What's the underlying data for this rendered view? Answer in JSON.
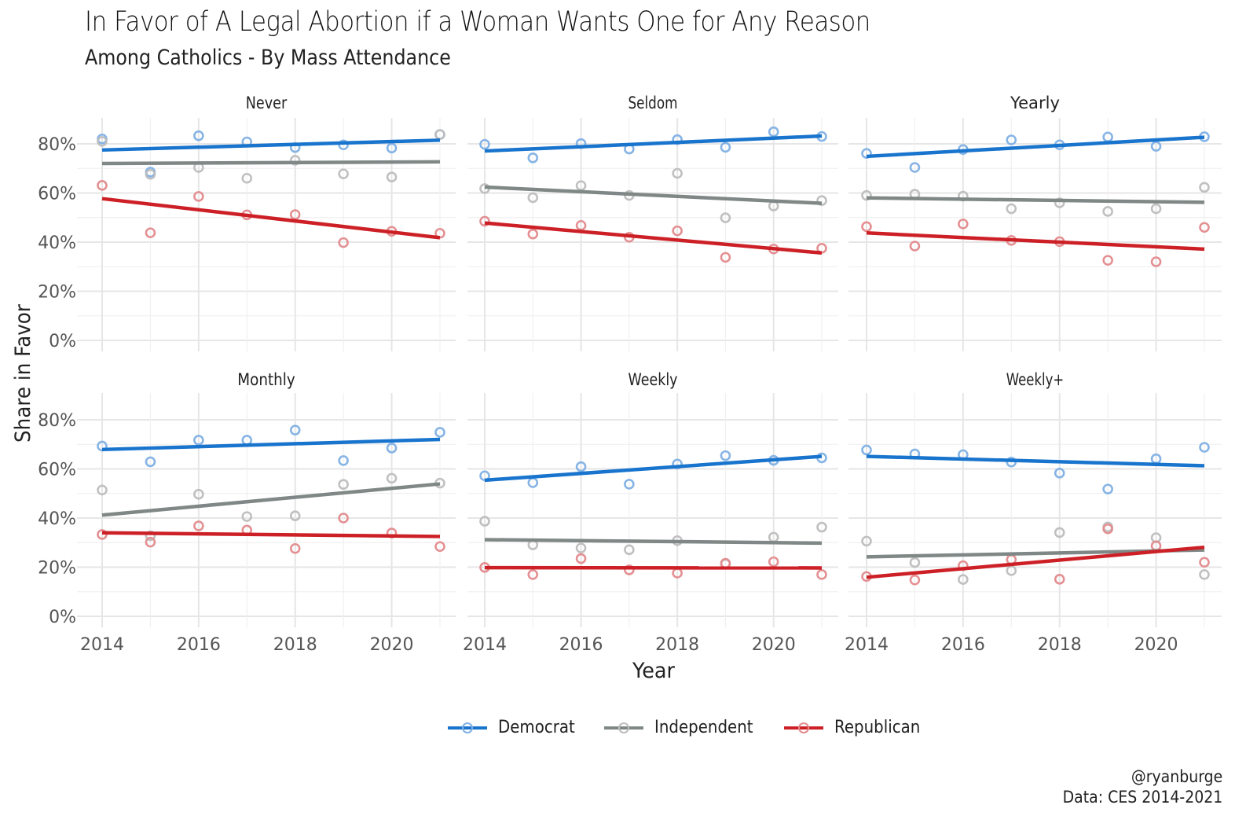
{
  "chart_data": {
    "type": "scatter",
    "title": "In Favor of A Legal Abortion if a Woman Wants One for Any Reason",
    "subtitle": "Among Catholics - By Mass Attendance",
    "xlabel": "Year",
    "ylabel": "Share in Favor",
    "x": [
      2014,
      2015,
      2016,
      2017,
      2018,
      2019,
      2020,
      2021
    ],
    "xticks": [
      "2014",
      "2016",
      "2018",
      "2020"
    ],
    "xlim": [
      2014,
      2021
    ],
    "yticks": [
      "0%",
      "20%",
      "40%",
      "60%",
      "80%"
    ],
    "ylim": [
      0,
      88
    ],
    "grid": true,
    "overlay": "linear trend line per series",
    "legend_position": "bottom",
    "legend": [
      {
        "name": "Democrat",
        "color": "#1874cd"
      },
      {
        "name": "Independent",
        "color": "#7f8886"
      },
      {
        "name": "Republican",
        "color": "#cd2026"
      }
    ],
    "facets": [
      {
        "name": "Never",
        "series": [
          {
            "name": "Democrat",
            "values": [
              82,
              68.5,
              83.3,
              80.8,
              78.5,
              79.6,
              78.3,
              83.8
            ],
            "trend": [
              77.5,
              81.5
            ]
          },
          {
            "name": "Independent",
            "values": [
              81,
              67.6,
              70.4,
              66,
              73.3,
              67.8,
              66.5,
              83.8
            ],
            "trend": [
              72,
              72.7
            ]
          },
          {
            "name": "Republican",
            "values": [
              63.1,
              43.8,
              58.6,
              51.1,
              51.2,
              39.8,
              44.4,
              43.6
            ],
            "trend": [
              57.7,
              41.8
            ]
          }
        ]
      },
      {
        "name": "Seldom",
        "series": [
          {
            "name": "Democrat",
            "values": [
              79.8,
              74.3,
              80.1,
              77.9,
              81.7,
              78.6,
              84.9,
              83
            ],
            "trend": [
              77.1,
              83.2
            ]
          },
          {
            "name": "Independent",
            "values": [
              61.8,
              58.1,
              63,
              59,
              68,
              49.9,
              54.7,
              56.9
            ],
            "trend": [
              62.4,
              55.8
            ]
          },
          {
            "name": "Republican",
            "values": [
              48.5,
              43.3,
              46.8,
              42,
              44.6,
              33.8,
              37.2,
              37.5
            ],
            "trend": [
              47.8,
              35.6
            ]
          }
        ]
      },
      {
        "name": "Yearly",
        "series": [
          {
            "name": "Democrat",
            "values": [
              76.1,
              70.4,
              77.7,
              81.6,
              79.6,
              82.8,
              79,
              82.9
            ],
            "trend": [
              74.9,
              82.7
            ]
          },
          {
            "name": "Independent",
            "values": [
              59,
              59.5,
              58.7,
              53.6,
              56,
              52.5,
              53.6,
              62.3
            ],
            "trend": [
              58,
              56.2
            ]
          },
          {
            "name": "Republican",
            "values": [
              46.3,
              38.4,
              47.4,
              40.7,
              40.2,
              32.6,
              32,
              46
            ]
          }
        ]
      },
      {
        "name": "Monthly",
        "series": [
          {
            "name": "Democrat",
            "values": [
              69.3,
              62.9,
              71.7,
              71.7,
              75.8,
              63.4,
              68.5,
              74.9
            ],
            "trend": [
              67.9,
              72
            ]
          },
          {
            "name": "Independent",
            "values": [
              51.4,
              32.8,
              49.7,
              40.6,
              40.9,
              53.7,
              56.2,
              54.2
            ],
            "trend": [
              41.2,
              53.9
            ]
          },
          {
            "name": "Republican",
            "values": [
              33.3,
              30.2,
              36.8,
              35.1,
              27.6,
              40,
              33.9,
              28.4
            ],
            "trend": [
              34,
              32.5
            ]
          }
        ]
      },
      {
        "name": "Weekly",
        "series": [
          {
            "name": "Democrat",
            "values": [
              57.2,
              54.4,
              60.9,
              53.8,
              62,
              65.4,
              63.5,
              64.5
            ],
            "trend": [
              55.4,
              65.1
            ]
          },
          {
            "name": "Independent",
            "values": [
              38.7,
              29.1,
              27.8,
              27.1,
              30.8,
              21.3,
              32.2,
              36.3
            ],
            "trend": [
              31.2,
              29.8
            ]
          },
          {
            "name": "Republican",
            "values": [
              19.9,
              17,
              23.5,
              18.9,
              17.6,
              21.6,
              22.2,
              17
            ],
            "trend": [
              19.8,
              19.7
            ]
          }
        ]
      },
      {
        "name": "Weekly+",
        "series": [
          {
            "name": "Democrat",
            "values": [
              67.7,
              66.1,
              65.8,
              62.8,
              58.3,
              51.8,
              64.1,
              68.8
            ],
            "trend": [
              65.1,
              61.3
            ]
          },
          {
            "name": "Independent",
            "values": [
              30.6,
              21.9,
              15,
              18.6,
              34.1,
              36.4,
              32,
              17
            ],
            "trend": [
              24.2,
              27
            ]
          },
          {
            "name": "Republican",
            "values": [
              16.2,
              14.8,
              20.6,
              23.1,
              15.1,
              35.6,
              28.7,
              22
            ],
            "trend": [
              15.9,
              28.1
            ]
          }
        ]
      }
    ]
  },
  "caption": {
    "handle": "@ryanburge",
    "source": "Data: CES 2014-2021"
  }
}
